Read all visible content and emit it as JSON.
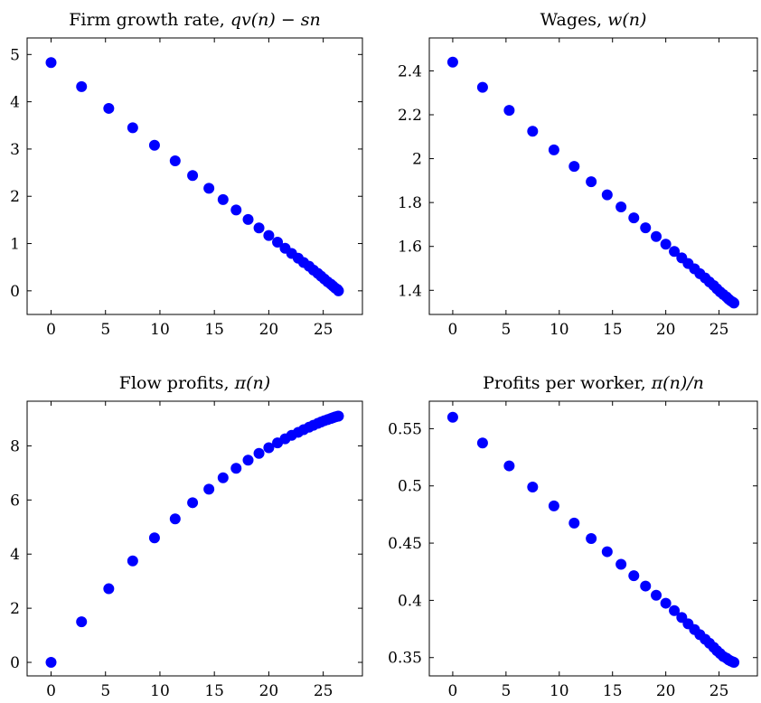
{
  "chart_data": [
    {
      "type": "scatter",
      "title": "Firm growth rate, ",
      "title_math": "qv(n) − sn",
      "xlim": [
        -2.2,
        28.6
      ],
      "ylim": [
        -0.5,
        5.35
      ],
      "xticks": [
        "0",
        "5",
        "10",
        "15",
        "20",
        "25"
      ],
      "yticks": [
        "0",
        "1",
        "2",
        "3",
        "4",
        "5"
      ],
      "grid": false,
      "marker_color": "#0000ff",
      "x": [
        0,
        2.8,
        5.3,
        7.5,
        9.5,
        11.4,
        13.0,
        14.5,
        15.8,
        17.0,
        18.1,
        19.1,
        20.0,
        20.8,
        21.5,
        22.1,
        22.7,
        23.2,
        23.7,
        24.1,
        24.5,
        24.8,
        25.1,
        25.4,
        25.7,
        25.9,
        26.1,
        26.3,
        26.4
      ],
      "y": [
        4.83,
        4.32,
        3.86,
        3.45,
        3.08,
        2.75,
        2.44,
        2.17,
        1.93,
        1.71,
        1.51,
        1.33,
        1.17,
        1.03,
        0.9,
        0.79,
        0.69,
        0.6,
        0.52,
        0.44,
        0.37,
        0.31,
        0.25,
        0.19,
        0.14,
        0.1,
        0.06,
        0.03,
        0.0
      ]
    },
    {
      "type": "scatter",
      "title": "Wages, ",
      "title_math": "w(n)",
      "xlim": [
        -2.2,
        28.6
      ],
      "ylim": [
        1.29,
        2.55
      ],
      "xticks": [
        "0",
        "5",
        "10",
        "15",
        "20",
        "25"
      ],
      "yticks": [
        "1.4",
        "1.6",
        "1.8",
        "2",
        "2.2",
        "2.4"
      ],
      "grid": false,
      "marker_color": "#0000ff",
      "x": [
        0,
        2.8,
        5.3,
        7.5,
        9.5,
        11.4,
        13.0,
        14.5,
        15.8,
        17.0,
        18.1,
        19.1,
        20.0,
        20.8,
        21.5,
        22.1,
        22.7,
        23.2,
        23.7,
        24.1,
        24.5,
        24.8,
        25.1,
        25.4,
        25.7,
        25.9,
        26.1,
        26.3,
        26.4
      ],
      "y": [
        2.44,
        2.325,
        2.22,
        2.125,
        2.04,
        1.965,
        1.895,
        1.835,
        1.78,
        1.73,
        1.685,
        1.645,
        1.61,
        1.577,
        1.548,
        1.522,
        1.498,
        1.476,
        1.456,
        1.438,
        1.422,
        1.407,
        1.393,
        1.381,
        1.37,
        1.36,
        1.352,
        1.346,
        1.342
      ]
    },
    {
      "type": "scatter",
      "title": "Flow profits, ",
      "title_math": "π(n)",
      "xlim": [
        -2.2,
        28.6
      ],
      "ylim": [
        -0.5,
        9.65
      ],
      "xticks": [
        "0",
        "5",
        "10",
        "15",
        "20",
        "25"
      ],
      "yticks": [
        "0",
        "2",
        "4",
        "6",
        "8"
      ],
      "grid": false,
      "marker_color": "#0000ff",
      "x": [
        0,
        2.8,
        5.3,
        7.5,
        9.5,
        11.4,
        13.0,
        14.5,
        15.8,
        17.0,
        18.1,
        19.1,
        20.0,
        20.8,
        21.5,
        22.1,
        22.7,
        23.2,
        23.7,
        24.1,
        24.5,
        24.8,
        25.1,
        25.4,
        25.7,
        25.9,
        26.1,
        26.3,
        26.4
      ],
      "y": [
        0.0,
        1.5,
        2.72,
        3.75,
        4.6,
        5.3,
        5.9,
        6.4,
        6.82,
        7.17,
        7.47,
        7.72,
        7.93,
        8.11,
        8.26,
        8.39,
        8.5,
        8.6,
        8.69,
        8.76,
        8.83,
        8.88,
        8.93,
        8.97,
        9.01,
        9.04,
        9.07,
        9.09,
        9.1
      ]
    },
    {
      "type": "scatter",
      "title": "Profits per worker, ",
      "title_math": "π(n)/n",
      "xlim": [
        -2.2,
        28.6
      ],
      "ylim": [
        0.334,
        0.574
      ],
      "xticks": [
        "0",
        "5",
        "10",
        "15",
        "20",
        "25"
      ],
      "yticks": [
        "0.35",
        "0.4",
        "0.45",
        "0.5",
        "0.55"
      ],
      "grid": false,
      "marker_color": "#0000ff",
      "x": [
        0,
        2.8,
        5.3,
        7.5,
        9.5,
        11.4,
        13.0,
        14.5,
        15.8,
        17.0,
        18.1,
        19.1,
        20.0,
        20.8,
        21.5,
        22.1,
        22.7,
        23.2,
        23.7,
        24.1,
        24.5,
        24.8,
        25.1,
        25.4,
        25.7,
        25.9,
        26.1,
        26.3,
        26.4
      ],
      "y": [
        0.56,
        0.5375,
        0.5175,
        0.499,
        0.4825,
        0.4675,
        0.454,
        0.4425,
        0.4315,
        0.4215,
        0.4125,
        0.4045,
        0.3975,
        0.391,
        0.385,
        0.3795,
        0.3745,
        0.37,
        0.366,
        0.3625,
        0.359,
        0.356,
        0.3535,
        0.351,
        0.3495,
        0.348,
        0.347,
        0.3462,
        0.3458
      ]
    }
  ]
}
